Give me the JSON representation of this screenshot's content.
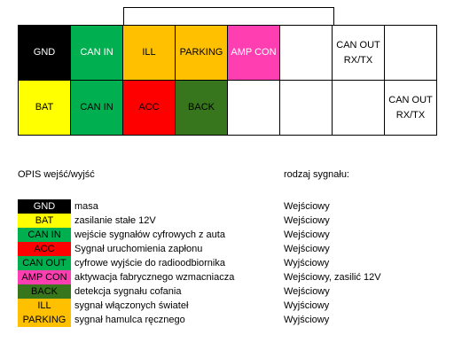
{
  "colors": {
    "black": "#000000",
    "yellow": "#FFFF00",
    "green": "#00B050",
    "orange": "#FFC000",
    "pink": "#FF3EB2",
    "red": "#FF0000",
    "darkgreen": "#38761D",
    "white": "#FFFFFF"
  },
  "connector": {
    "row1": [
      {
        "label": "GND",
        "color": "black",
        "text_color": "#FFFFFF"
      },
      {
        "label": "CAN IN",
        "color": "green",
        "text_color": "#FFFFFF"
      },
      {
        "label": "ILL",
        "color": "orange",
        "text_color": "#000000"
      },
      {
        "label": "PARKING",
        "color": "orange",
        "text_color": "#000000"
      },
      {
        "label": "AMP CON",
        "color": "pink",
        "text_color": "#FFFFFF"
      },
      {
        "label": "",
        "color": "white",
        "text_color": "#000000"
      },
      {
        "label": "CAN OUT\nRX/TX",
        "color": "white",
        "text_color": "#000000"
      },
      {
        "label": "",
        "color": "white",
        "text_color": "#000000"
      }
    ],
    "row2": [
      {
        "label": "BAT",
        "color": "yellow",
        "text_color": "#000000"
      },
      {
        "label": "CAN IN",
        "color": "green",
        "text_color": "#000000"
      },
      {
        "label": "ACC",
        "color": "red",
        "text_color": "#000000"
      },
      {
        "label": "BACK",
        "color": "darkgreen",
        "text_color": "#000000"
      },
      {
        "label": "",
        "color": "white",
        "text_color": "#000000"
      },
      {
        "label": "",
        "color": "white",
        "text_color": "#000000"
      },
      {
        "label": "",
        "color": "white",
        "text_color": "#000000"
      },
      {
        "label": "CAN OUT\nRX/TX",
        "color": "white",
        "text_color": "#000000"
      }
    ]
  },
  "headers": {
    "description": "OPIS wejść/wyjść",
    "signal_type": "rodzaj sygnału:"
  },
  "legend": [
    {
      "label": "GND",
      "color": "black",
      "text_color": "#FFFFFF",
      "description": "masa",
      "type": "Wejściowy"
    },
    {
      "label": "BAT",
      "color": "yellow",
      "text_color": "#000000",
      "description": "zasilanie stałe 12V",
      "type": "Wejściowy"
    },
    {
      "label": "CAN IN",
      "color": "green",
      "text_color": "#000000",
      "description": "wejście sygnałów cyfrowych z auta",
      "type": "Wejściowy"
    },
    {
      "label": "ACC",
      "color": "red",
      "text_color": "#000000",
      "description": "Sygnał uruchomienia zapłonu",
      "type": "Wejściowy"
    },
    {
      "label": "CAN OUT",
      "color": "green",
      "text_color": "#000000",
      "description": "cyfrowe wyjście do radioodbiornika",
      "type": "Wyjściowy"
    },
    {
      "label": "AMP CON",
      "color": "pink",
      "text_color": "#000000",
      "description": "aktywacja fabrycznego wzmacniacza",
      "type": "Wejściowy, zasilić 12V"
    },
    {
      "label": "BACK",
      "color": "darkgreen",
      "text_color": "#000000",
      "description": "detekcja sygnału cofania",
      "type": "Wejściowy"
    },
    {
      "label": "ILL",
      "color": "orange",
      "text_color": "#000000",
      "description": "sygnał włączonych świateł",
      "type": "Wyjściowy"
    },
    {
      "label": "PARKING",
      "color": "orange",
      "text_color": "#000000",
      "description": "sygnał hamulca ręcznego",
      "type": "Wyjściowy"
    }
  ]
}
